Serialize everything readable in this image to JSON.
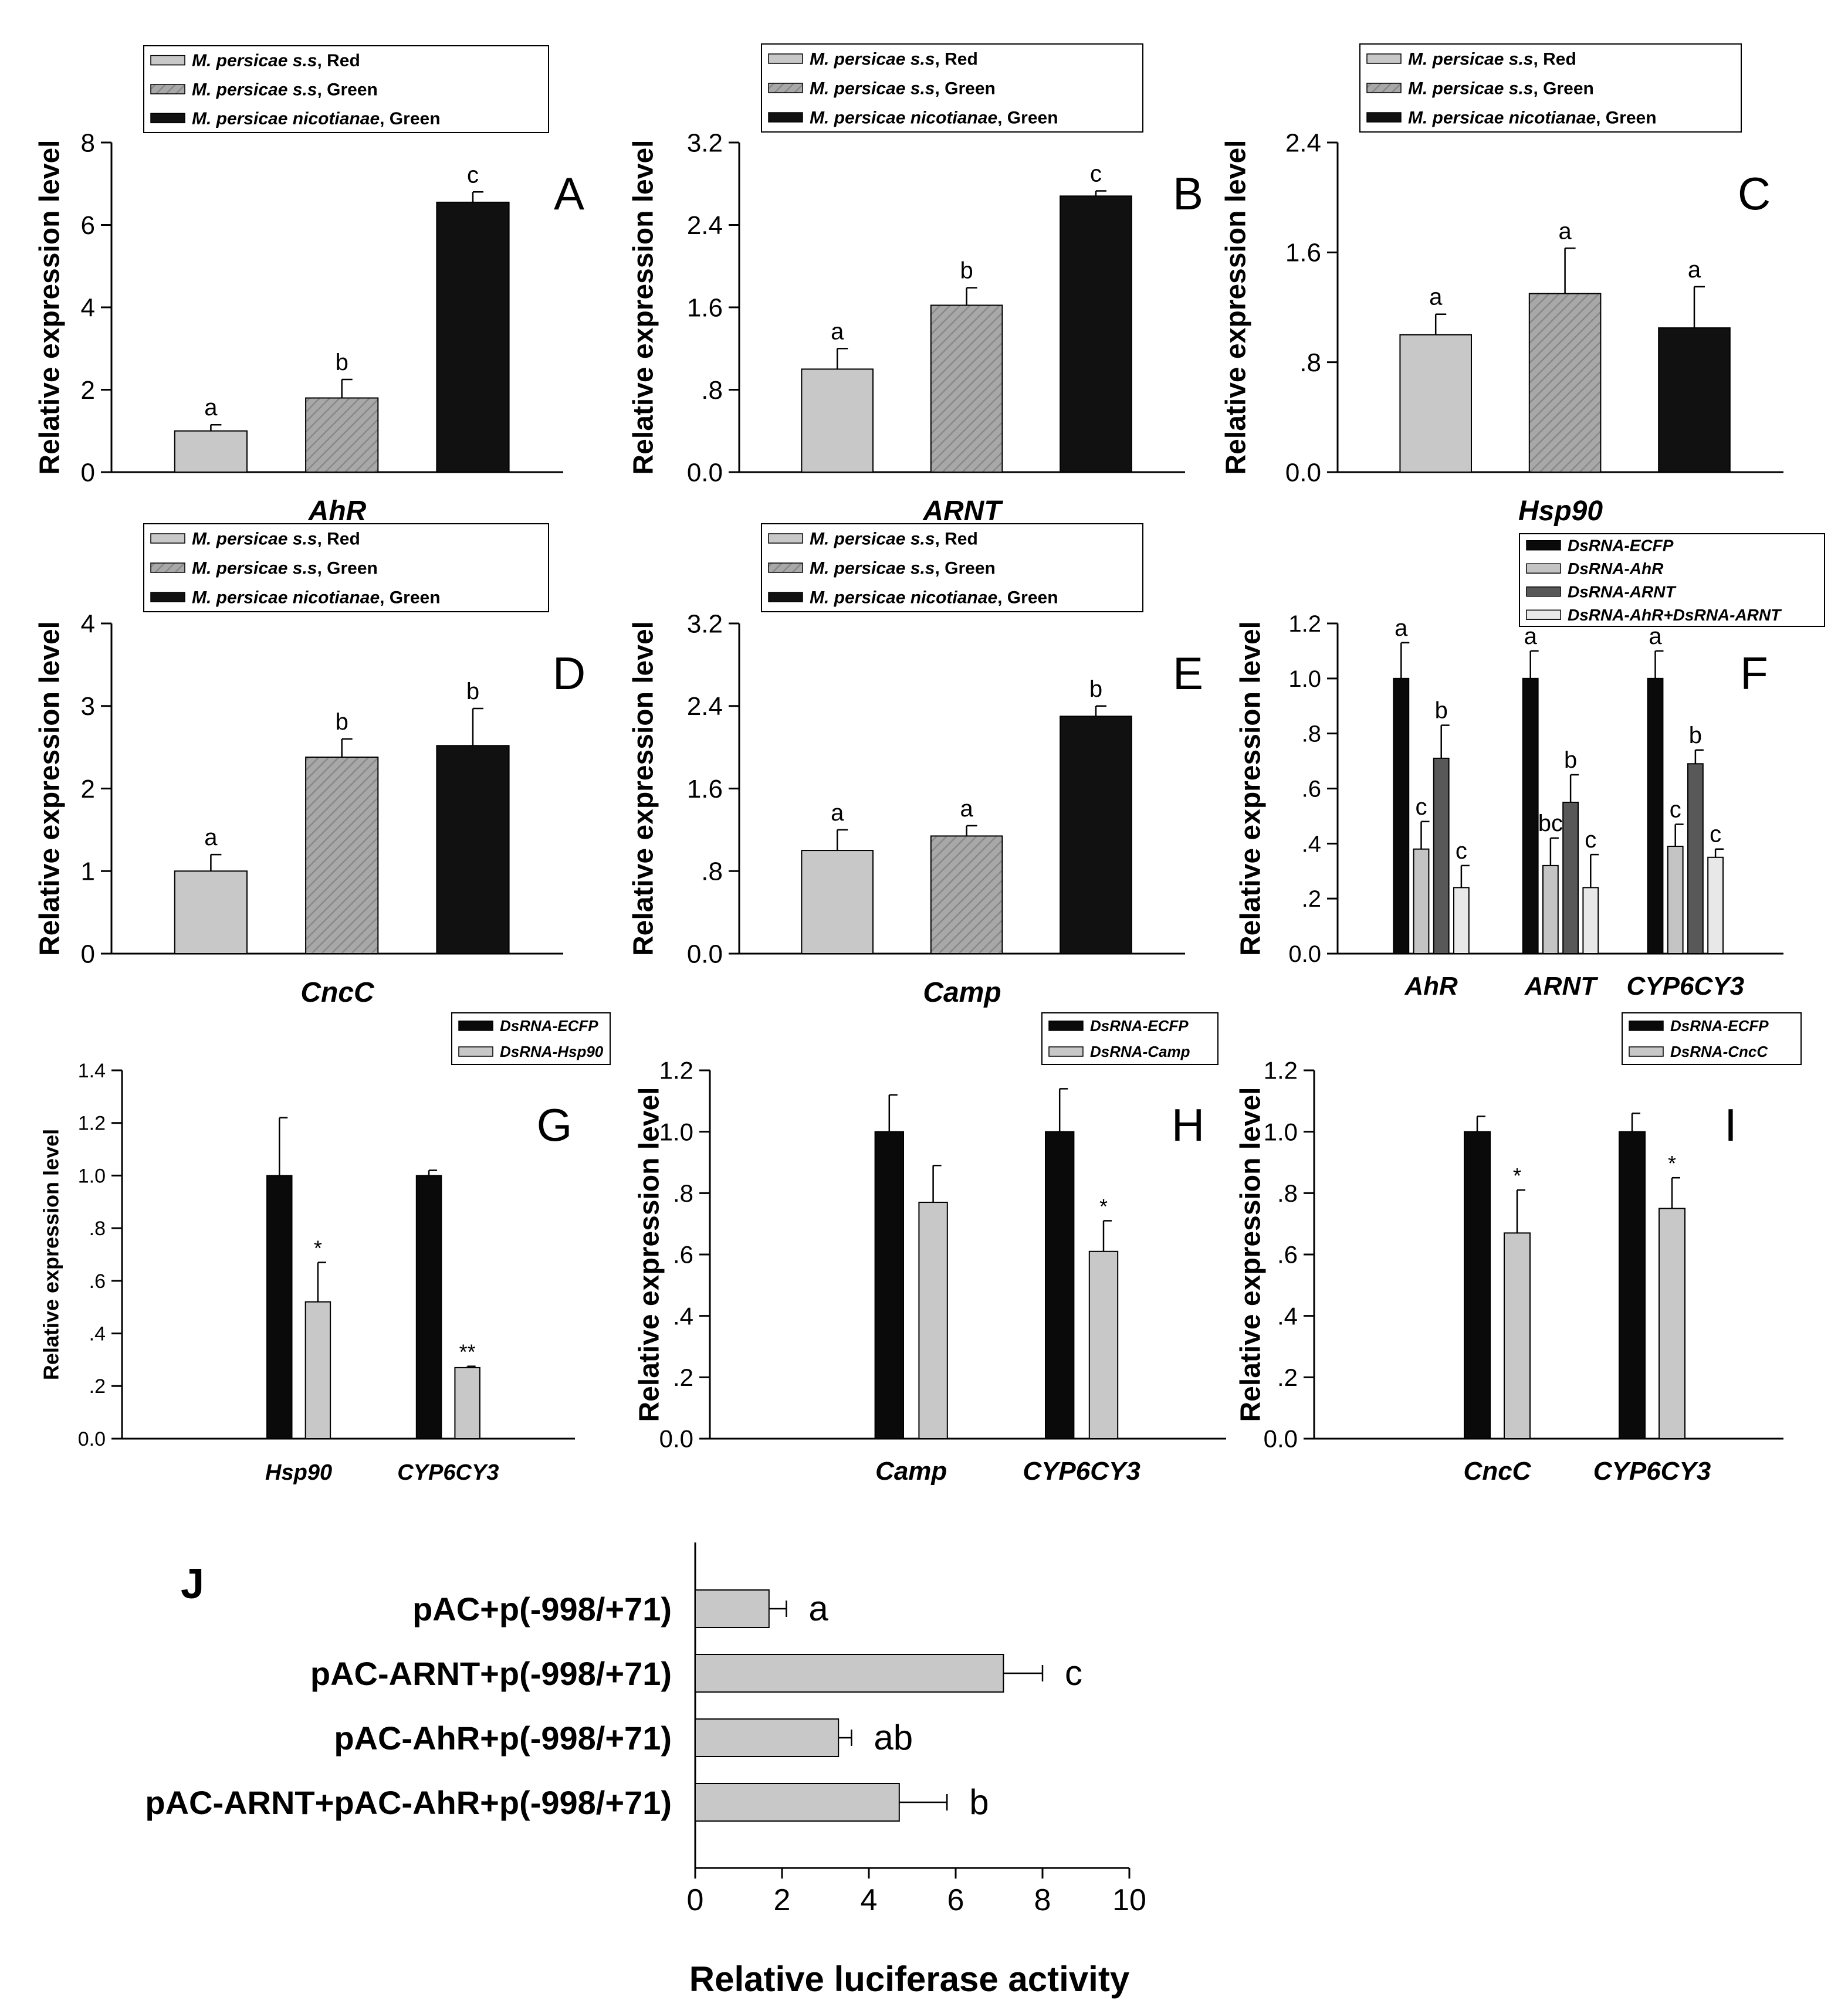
{
  "chart_data": [
    {
      "panel": "A",
      "type": "bar",
      "ylabel": "Relative expression level",
      "xlabel": "AhR",
      "ylim": [
        0,
        8
      ],
      "yticks": [
        0,
        2,
        4,
        6,
        8
      ],
      "ytick_labels": [
        "0",
        "2",
        "4",
        "6",
        "8"
      ],
      "legend": [
        "M. persicae s.s, Red",
        "M. persicae s.s, Green",
        "M. persicae nicotianae, Green"
      ],
      "series": [
        {
          "name": "expression",
          "values": [
            1.0,
            1.8,
            6.55
          ],
          "errors": [
            0.15,
            0.45,
            0.25
          ],
          "labels": [
            "a",
            "b",
            "c"
          ]
        }
      ]
    },
    {
      "panel": "B",
      "type": "bar",
      "ylabel": "Relative expression level",
      "xlabel": "ARNT",
      "ylim": [
        0,
        3.2
      ],
      "yticks": [
        0,
        0.8,
        1.6,
        2.4,
        3.2
      ],
      "ytick_labels": [
        "0.0",
        ".8",
        "1.6",
        "2.4",
        "3.2"
      ],
      "legend": [
        "M. persicae s.s, Red",
        "M. persicae s.s, Green",
        "M. persicae nicotianae, Green"
      ],
      "series": [
        {
          "name": "expression",
          "values": [
            1.0,
            1.62,
            2.68
          ],
          "errors": [
            0.2,
            0.17,
            0.05
          ],
          "labels": [
            "a",
            "b",
            "c"
          ]
        }
      ]
    },
    {
      "panel": "C",
      "type": "bar",
      "ylabel": "Relative expression level",
      "xlabel": "Hsp90",
      "ylim": [
        0,
        2.4
      ],
      "yticks": [
        0,
        0.8,
        1.6,
        2.4
      ],
      "ytick_labels": [
        "0.0",
        ".8",
        "1.6",
        "2.4"
      ],
      "legend": [
        "M. persicae s.s, Red",
        "M. persicae s.s, Green",
        "M. persicae nicotianae, Green"
      ],
      "series": [
        {
          "name": "expression",
          "values": [
            1.0,
            1.3,
            1.05
          ],
          "errors": [
            0.15,
            0.33,
            0.3
          ],
          "labels": [
            "a",
            "a",
            "a"
          ]
        }
      ]
    },
    {
      "panel": "D",
      "type": "bar",
      "ylabel": "Relative expression level",
      "xlabel": "CncC",
      "ylim": [
        0,
        4
      ],
      "yticks": [
        0,
        1,
        2,
        3,
        4
      ],
      "ytick_labels": [
        "0",
        "1",
        "2",
        "3",
        "4"
      ],
      "legend": [
        "M. persicae s.s, Red",
        "M. persicae s.s, Green",
        "M. persicae nicotianae, Green"
      ],
      "series": [
        {
          "name": "expression",
          "values": [
            1.0,
            2.38,
            2.52
          ],
          "errors": [
            0.2,
            0.22,
            0.45
          ],
          "labels": [
            "a",
            "b",
            "b"
          ]
        }
      ]
    },
    {
      "panel": "E",
      "type": "bar",
      "ylabel": "Relative expression level",
      "xlabel": "Camp",
      "ylim": [
        0,
        3.2
      ],
      "yticks": [
        0,
        0.8,
        1.6,
        2.4,
        3.2
      ],
      "ytick_labels": [
        "0.0",
        ".8",
        "1.6",
        "2.4",
        "3.2"
      ],
      "legend": [
        "M. persicae s.s, Red",
        "M. persicae s.s, Green",
        "M. persicae nicotianae, Green"
      ],
      "series": [
        {
          "name": "expression",
          "values": [
            1.0,
            1.14,
            2.3
          ],
          "errors": [
            0.2,
            0.1,
            0.1
          ],
          "labels": [
            "a",
            "a",
            "b"
          ]
        }
      ]
    },
    {
      "panel": "F",
      "type": "bar",
      "ylabel": "Relative expression level",
      "xlabel": "",
      "ylim": [
        0,
        1.2
      ],
      "yticks": [
        0,
        0.2,
        0.4,
        0.6,
        0.8,
        1.0,
        1.2
      ],
      "ytick_labels": [
        "0.0",
        ".2",
        ".4",
        ".6",
        ".8",
        "1.0",
        "1.2"
      ],
      "categories": [
        "AhR",
        "ARNT",
        "CYP6CY3"
      ],
      "legend": [
        "DsRNA-ECFP",
        "DsRNA-AhR",
        "DsRNA-ARNT",
        "DsRNA-AhR+DsRNA-ARNT"
      ],
      "series": [
        {
          "name": "DsRNA-ECFP",
          "values": [
            1.0,
            1.0,
            1.0
          ],
          "errors": [
            0.13,
            0.1,
            0.1
          ],
          "labels": [
            "a",
            "a",
            "a"
          ]
        },
        {
          "name": "DsRNA-AhR",
          "values": [
            0.38,
            0.32,
            0.39
          ],
          "errors": [
            0.1,
            0.1,
            0.08
          ],
          "labels": [
            "c",
            "bc",
            "c"
          ]
        },
        {
          "name": "DsRNA-ARNT",
          "values": [
            0.71,
            0.55,
            0.69
          ],
          "errors": [
            0.12,
            0.1,
            0.05
          ],
          "labels": [
            "b",
            "b",
            "b"
          ]
        },
        {
          "name": "DsRNA-AhR+DsRNA-ARNT",
          "values": [
            0.24,
            0.24,
            0.35
          ],
          "errors": [
            0.08,
            0.12,
            0.03
          ],
          "labels": [
            "c",
            "c",
            "c"
          ]
        }
      ]
    },
    {
      "panel": "G",
      "type": "bar",
      "ylabel": "Relative expression level",
      "xlabel": "",
      "ylim": [
        0,
        1.4
      ],
      "yticks": [
        0,
        0.2,
        0.4,
        0.6,
        0.8,
        1.0,
        1.2,
        1.4
      ],
      "ytick_labels": [
        "0.0",
        ".2",
        ".4",
        ".6",
        ".8",
        "1.0",
        "1.2",
        "1.4"
      ],
      "categories": [
        "Hsp90",
        "CYP6CY3"
      ],
      "legend": [
        "DsRNA-ECFP",
        "DsRNA-Hsp90"
      ],
      "series": [
        {
          "name": "DsRNA-ECFP",
          "values": [
            1.0,
            1.0
          ],
          "errors": [
            0.22,
            0.02
          ],
          "labels": [
            "",
            ""
          ]
        },
        {
          "name": "DsRNA-Hsp90",
          "values": [
            0.52,
            0.27
          ],
          "errors": [
            0.15,
            0.005
          ],
          "labels": [
            "*",
            "**"
          ]
        }
      ]
    },
    {
      "panel": "H",
      "type": "bar",
      "ylabel": "Relative expression level",
      "xlabel": "",
      "ylim": [
        0,
        1.2
      ],
      "yticks": [
        0,
        0.2,
        0.4,
        0.6,
        0.8,
        1.0,
        1.2
      ],
      "ytick_labels": [
        "0.0",
        ".2",
        ".4",
        ".6",
        ".8",
        "1.0",
        "1.2"
      ],
      "categories": [
        "Camp",
        "CYP6CY3"
      ],
      "legend": [
        "DsRNA-ECFP",
        "DsRNA-Camp"
      ],
      "series": [
        {
          "name": "DsRNA-ECFP",
          "values": [
            1.0,
            1.0
          ],
          "errors": [
            0.12,
            0.14
          ],
          "labels": [
            "",
            ""
          ]
        },
        {
          "name": "DsRNA-Camp",
          "values": [
            0.77,
            0.61
          ],
          "errors": [
            0.12,
            0.1
          ],
          "labels": [
            "",
            "*"
          ]
        }
      ]
    },
    {
      "panel": "I",
      "type": "bar",
      "ylabel": "Relative expression level",
      "xlabel": "",
      "ylim": [
        0,
        1.2
      ],
      "yticks": [
        0,
        0.2,
        0.4,
        0.6,
        0.8,
        1.0,
        1.2
      ],
      "ytick_labels": [
        "0.0",
        ".2",
        ".4",
        ".6",
        ".8",
        "1.0",
        "1.2"
      ],
      "categories": [
        "CncC",
        "CYP6CY3"
      ],
      "legend": [
        "DsRNA-ECFP",
        "DsRNA-CncC"
      ],
      "series": [
        {
          "name": "DsRNA-ECFP",
          "values": [
            1.0,
            1.0
          ],
          "errors": [
            0.05,
            0.06
          ],
          "labels": [
            "",
            ""
          ]
        },
        {
          "name": "DsRNA-CncC",
          "values": [
            0.67,
            0.75
          ],
          "errors": [
            0.14,
            0.1
          ],
          "labels": [
            "*",
            "*"
          ]
        }
      ]
    },
    {
      "panel": "J",
      "type": "bar",
      "orientation": "horizontal",
      "xlabel": "Relative luciferase activity",
      "xlim": [
        0,
        10
      ],
      "xticks": [
        0,
        2,
        4,
        6,
        8,
        10
      ],
      "xtick_labels": [
        "0",
        "2",
        "4",
        "6",
        "8",
        "10"
      ],
      "categories": [
        "pAC+p(-998/+71)",
        "pAC-ARNT+p(-998/+71)",
        "pAC-AhR+p(-998/+71)",
        "pAC-ARNT+pAC-AhR+p(-998/+71)"
      ],
      "values": [
        1.7,
        7.1,
        3.3,
        4.7
      ],
      "errors": [
        0.4,
        0.9,
        0.3,
        1.1
      ],
      "labels": [
        "a",
        "c",
        "ab",
        "b"
      ]
    }
  ]
}
